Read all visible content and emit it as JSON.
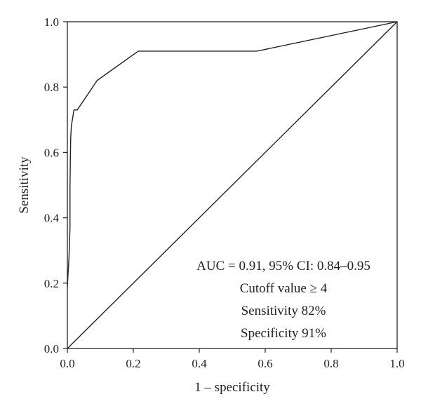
{
  "chart_data": {
    "type": "line",
    "title": "",
    "xlabel": "1 – specificity",
    "ylabel": "Sensitivity",
    "xlim": [
      0.0,
      1.0
    ],
    "ylim": [
      0.0,
      1.0
    ],
    "xticks": [
      "0.0",
      "0.2",
      "0.4",
      "0.6",
      "0.8",
      "1.0"
    ],
    "yticks": [
      "0.0",
      "0.2",
      "0.4",
      "0.6",
      "0.8",
      "1.0"
    ],
    "grid": false,
    "legend": "none",
    "series": [
      {
        "x": [
          0.0,
          0.005,
          0.008,
          0.008,
          0.01,
          0.012,
          0.02,
          0.03,
          0.09,
          0.215,
          0.575,
          1.0
        ],
        "y": [
          0.19,
          0.28,
          0.37,
          0.5,
          0.64,
          0.68,
          0.73,
          0.73,
          0.82,
          0.91,
          0.91,
          1.0
        ]
      },
      {
        "x": [
          0.0,
          1.0
        ],
        "y": [
          0.0,
          1.0
        ]
      }
    ],
    "annotations": [
      "AUC = 0.91, 95% CI: 0.84–0.95",
      "Cutoff value ≥ 4",
      "Sensitivity 82%",
      "Specificity 91%"
    ]
  }
}
